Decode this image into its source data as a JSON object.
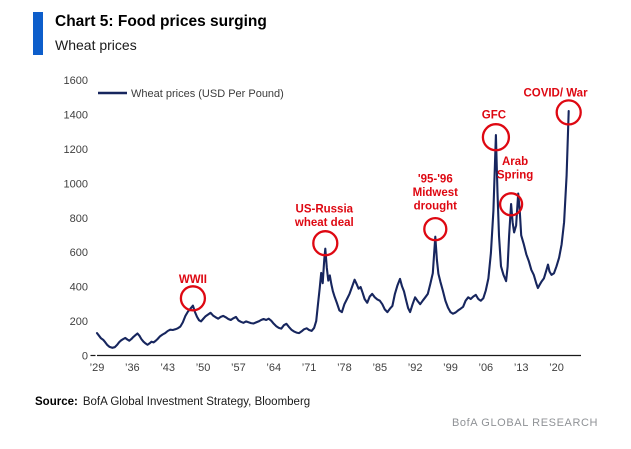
{
  "header": {
    "title": "Chart 5: Food prices surging",
    "subtitle": "Wheat prices"
  },
  "footer": {
    "source_label": "Source:",
    "source_text": "BofA Global Investment Strategy, Bloomberg",
    "brand": "BofA GLOBAL RESEARCH"
  },
  "chart_data": {
    "type": "line",
    "title": "Wheat prices",
    "xlabel": "",
    "ylabel": "",
    "legend": {
      "label": "Wheat prices (USD Per Pound)",
      "position": "top-left"
    },
    "grid": false,
    "ylim": [
      0,
      1600
    ],
    "xlim": [
      1929,
      2024
    ],
    "y_ticks": [
      0,
      200,
      400,
      600,
      800,
      1000,
      1200,
      1400,
      1600
    ],
    "x_tick_years": [
      1929,
      1936,
      1943,
      1950,
      1957,
      1964,
      1971,
      1978,
      1985,
      1992,
      1999,
      2006,
      2013,
      2020
    ],
    "x_tick_labels": [
      "’29",
      "’36",
      "’43",
      "’50",
      "’57",
      "’64",
      "’71",
      "’78",
      "’85",
      "’92",
      "’99",
      "’06",
      "’13",
      "’20"
    ],
    "line_color": "#17265e",
    "annotation_color": "#de0812",
    "axis_color": "#1a1a1a",
    "series": [
      {
        "name": "Wheat prices (USD Per Pound)",
        "points": [
          [
            1929,
            130
          ],
          [
            1929.4,
            115
          ],
          [
            1929.8,
            100
          ],
          [
            1930.2,
            92
          ],
          [
            1930.6,
            78
          ],
          [
            1931,
            62
          ],
          [
            1931.5,
            50
          ],
          [
            1932,
            45
          ],
          [
            1932.5,
            48
          ],
          [
            1933,
            62
          ],
          [
            1933.4,
            78
          ],
          [
            1933.8,
            88
          ],
          [
            1934.2,
            96
          ],
          [
            1934.6,
            102
          ],
          [
            1935,
            93
          ],
          [
            1935.4,
            86
          ],
          [
            1935.8,
            95
          ],
          [
            1936.2,
            108
          ],
          [
            1936.6,
            118
          ],
          [
            1937,
            128
          ],
          [
            1937.4,
            115
          ],
          [
            1937.8,
            95
          ],
          [
            1938.2,
            80
          ],
          [
            1938.6,
            70
          ],
          [
            1939,
            62
          ],
          [
            1939.4,
            70
          ],
          [
            1939.8,
            80
          ],
          [
            1940.2,
            76
          ],
          [
            1940.6,
            85
          ],
          [
            1941,
            96
          ],
          [
            1941.5,
            112
          ],
          [
            1942,
            122
          ],
          [
            1942.5,
            130
          ],
          [
            1943,
            142
          ],
          [
            1943.5,
            150
          ],
          [
            1944,
            148
          ],
          [
            1944.5,
            152
          ],
          [
            1945,
            158
          ],
          [
            1945.5,
            168
          ],
          [
            1946,
            192
          ],
          [
            1946.5,
            230
          ],
          [
            1947,
            255
          ],
          [
            1947.5,
            272
          ],
          [
            1948,
            290
          ],
          [
            1948.4,
            252
          ],
          [
            1948.8,
            225
          ],
          [
            1949.2,
            205
          ],
          [
            1949.6,
            198
          ],
          [
            1950,
            212
          ],
          [
            1950.5,
            228
          ],
          [
            1951,
            238
          ],
          [
            1951.5,
            248
          ],
          [
            1952,
            232
          ],
          [
            1952.5,
            222
          ],
          [
            1953,
            214
          ],
          [
            1953.5,
            224
          ],
          [
            1954,
            230
          ],
          [
            1954.5,
            222
          ],
          [
            1955,
            212
          ],
          [
            1955.5,
            206
          ],
          [
            1956,
            216
          ],
          [
            1956.5,
            224
          ],
          [
            1957,
            204
          ],
          [
            1957.5,
            196
          ],
          [
            1958,
            190
          ],
          [
            1958.5,
            198
          ],
          [
            1959,
            193
          ],
          [
            1959.5,
            188
          ],
          [
            1960,
            186
          ],
          [
            1960.5,
            192
          ],
          [
            1961,
            198
          ],
          [
            1961.5,
            206
          ],
          [
            1962,
            212
          ],
          [
            1962.5,
            206
          ],
          [
            1963,
            214
          ],
          [
            1963.5,
            202
          ],
          [
            1964,
            184
          ],
          [
            1964.5,
            170
          ],
          [
            1965,
            160
          ],
          [
            1965.5,
            156
          ],
          [
            1966,
            176
          ],
          [
            1966.5,
            184
          ],
          [
            1967,
            166
          ],
          [
            1967.5,
            150
          ],
          [
            1968,
            140
          ],
          [
            1968.5,
            133
          ],
          [
            1969,
            130
          ],
          [
            1969.5,
            140
          ],
          [
            1970,
            152
          ],
          [
            1970.5,
            158
          ],
          [
            1971,
            148
          ],
          [
            1971.5,
            143
          ],
          [
            1972,
            160
          ],
          [
            1972.4,
            200
          ],
          [
            1972.8,
            310
          ],
          [
            1973.1,
            390
          ],
          [
            1973.4,
            480
          ],
          [
            1973.7,
            420
          ],
          [
            1974,
            560
          ],
          [
            1974.2,
            620
          ],
          [
            1974.5,
            510
          ],
          [
            1974.8,
            435
          ],
          [
            1975.1,
            465
          ],
          [
            1975.4,
            415
          ],
          [
            1975.7,
            375
          ],
          [
            1976,
            345
          ],
          [
            1976.5,
            305
          ],
          [
            1977,
            262
          ],
          [
            1977.5,
            252
          ],
          [
            1978,
            298
          ],
          [
            1978.5,
            328
          ],
          [
            1979,
            358
          ],
          [
            1979.5,
            398
          ],
          [
            1980,
            440
          ],
          [
            1980.4,
            415
          ],
          [
            1980.8,
            388
          ],
          [
            1981.2,
            398
          ],
          [
            1981.6,
            365
          ],
          [
            1982,
            328
          ],
          [
            1982.5,
            306
          ],
          [
            1983,
            342
          ],
          [
            1983.5,
            358
          ],
          [
            1984,
            338
          ],
          [
            1984.5,
            326
          ],
          [
            1985,
            318
          ],
          [
            1985.5,
            298
          ],
          [
            1986,
            268
          ],
          [
            1986.5,
            252
          ],
          [
            1987,
            272
          ],
          [
            1987.5,
            288
          ],
          [
            1988,
            358
          ],
          [
            1988.5,
            408
          ],
          [
            1989,
            445
          ],
          [
            1989.4,
            402
          ],
          [
            1989.8,
            372
          ],
          [
            1990.2,
            322
          ],
          [
            1990.6,
            276
          ],
          [
            1991,
            252
          ],
          [
            1991.5,
            298
          ],
          [
            1992,
            338
          ],
          [
            1992.5,
            316
          ],
          [
            1993,
            298
          ],
          [
            1993.5,
            318
          ],
          [
            1994,
            338
          ],
          [
            1994.5,
            358
          ],
          [
            1995,
            415
          ],
          [
            1995.5,
            478
          ],
          [
            1996,
            690
          ],
          [
            1996.3,
            555
          ],
          [
            1996.6,
            475
          ],
          [
            1997,
            428
          ],
          [
            1997.5,
            375
          ],
          [
            1998,
            318
          ],
          [
            1998.5,
            278
          ],
          [
            1999,
            252
          ],
          [
            1999.5,
            243
          ],
          [
            2000,
            250
          ],
          [
            2000.5,
            262
          ],
          [
            2001,
            272
          ],
          [
            2001.5,
            283
          ],
          [
            2002,
            318
          ],
          [
            2002.5,
            338
          ],
          [
            2003,
            328
          ],
          [
            2003.5,
            342
          ],
          [
            2004,
            352
          ],
          [
            2004.5,
            328
          ],
          [
            2005,
            318
          ],
          [
            2005.5,
            332
          ],
          [
            2006,
            378
          ],
          [
            2006.5,
            448
          ],
          [
            2007,
            595
          ],
          [
            2007.5,
            840
          ],
          [
            2008,
            1280
          ],
          [
            2008.3,
            945
          ],
          [
            2008.6,
            695
          ],
          [
            2009,
            518
          ],
          [
            2009.5,
            468
          ],
          [
            2010,
            432
          ],
          [
            2010.3,
            515
          ],
          [
            2010.6,
            695
          ],
          [
            2011,
            880
          ],
          [
            2011.3,
            775
          ],
          [
            2011.6,
            715
          ],
          [
            2012,
            755
          ],
          [
            2012.4,
            940
          ],
          [
            2012.7,
            845
          ],
          [
            2013,
            698
          ],
          [
            2013.5,
            648
          ],
          [
            2014,
            588
          ],
          [
            2014.5,
            548
          ],
          [
            2015,
            498
          ],
          [
            2015.5,
            468
          ],
          [
            2016,
            418
          ],
          [
            2016.3,
            392
          ],
          [
            2016.6,
            408
          ],
          [
            2017,
            428
          ],
          [
            2017.5,
            448
          ],
          [
            2018,
            498
          ],
          [
            2018.3,
            528
          ],
          [
            2018.6,
            488
          ],
          [
            2019,
            468
          ],
          [
            2019.5,
            478
          ],
          [
            2020,
            518
          ],
          [
            2020.5,
            568
          ],
          [
            2021,
            645
          ],
          [
            2021.5,
            775
          ],
          [
            2022,
            1045
          ],
          [
            2022.4,
            1420
          ]
        ]
      }
    ],
    "annotations": [
      {
        "label_lines": [
          "WWII"
        ],
        "label_at": [
          1948,
          420
        ],
        "circle_at": [
          1948,
          332
        ],
        "circle_r": 12
      },
      {
        "label_lines": [
          "US-Russia",
          "wheat deal"
        ],
        "label_at": [
          1974,
          830
        ],
        "circle_at": [
          1974.2,
          652
        ],
        "circle_r": 12
      },
      {
        "label_lines": [
          "'95-'96",
          "Midwest",
          "drought"
        ],
        "label_at": [
          1996,
          1005
        ],
        "circle_at": [
          1996,
          734
        ],
        "circle_r": 11
      },
      {
        "label_lines": [
          "GFC"
        ],
        "label_at": [
          2007.6,
          1375
        ],
        "circle_at": [
          2008,
          1268
        ],
        "circle_r": 13
      },
      {
        "label_lines": [
          "Arab",
          "Spring"
        ],
        "label_at": [
          2011.8,
          1105
        ],
        "circle_at": [
          2011,
          878
        ],
        "circle_r": 11
      },
      {
        "label_lines": [
          "COVID/ War"
        ],
        "label_at": [
          2019.8,
          1505
        ],
        "circle_at": [
          2022.4,
          1412
        ],
        "circle_r": 12
      }
    ]
  }
}
